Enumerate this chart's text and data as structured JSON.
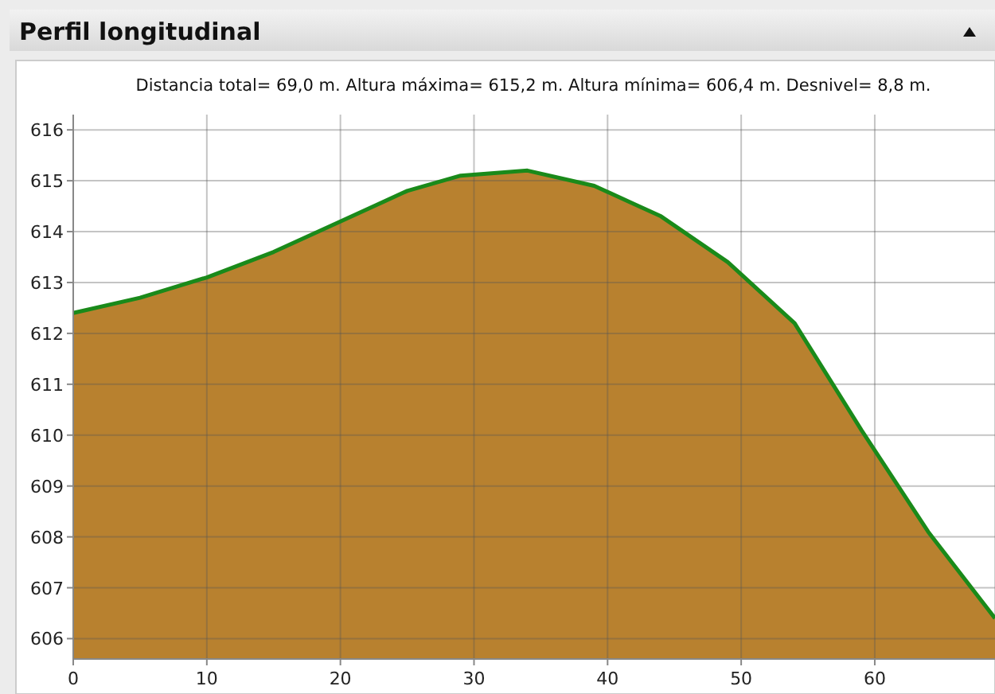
{
  "chart_data": {
    "type": "area",
    "title": "Perfil longitudinal",
    "subtitle": "Distancia total= 69,0 m. Altura máxima= 615,2 m. Altura mínima= 606,4 m. Desnivel= 8,8 m.",
    "x": [
      0,
      5,
      10,
      15,
      20,
      25,
      29,
      34,
      39,
      44,
      49,
      54,
      59,
      64,
      69
    ],
    "series": [
      {
        "color": "#b8812f",
        "values": [
          612.4,
          612.7,
          613.1,
          613.6,
          614.2,
          614.8,
          615.1,
          615.2,
          614.9,
          614.3,
          613.4,
          612.2,
          610.1,
          608.1,
          606.4
        ]
      },
      {
        "type": "line",
        "color": "#1a8a1a",
        "values": [
          612.4,
          612.7,
          613.1,
          613.6,
          614.2,
          614.8,
          615.1,
          615.2,
          614.9,
          614.3,
          613.4,
          612.2,
          610.1,
          608.1,
          606.4
        ]
      }
    ],
    "xlim": [
      0,
      69
    ],
    "xticks": [
      0,
      10,
      20,
      30,
      40,
      50,
      60
    ],
    "ylim": [
      605.6,
      616.3
    ],
    "yticks": [
      606,
      607,
      608,
      609,
      610,
      611,
      612,
      613,
      614,
      615,
      616
    ],
    "grid": true
  }
}
